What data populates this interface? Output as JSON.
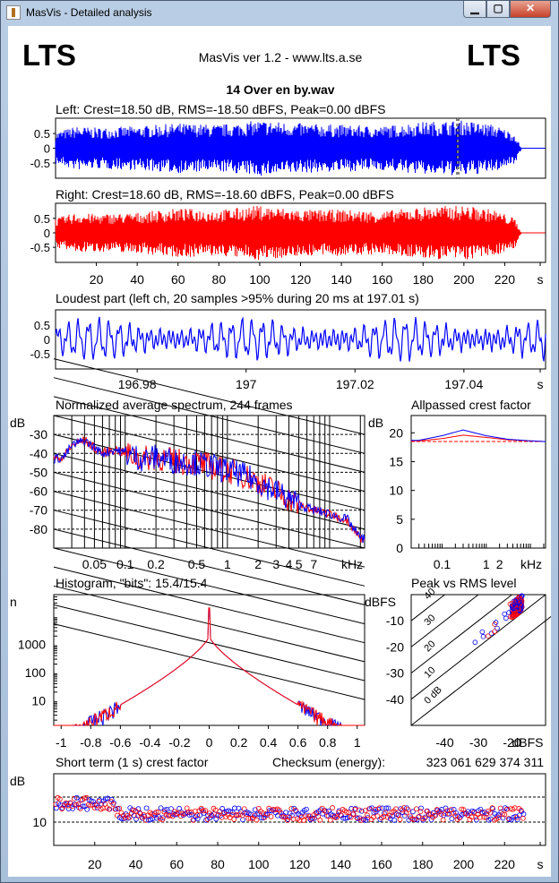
{
  "window": {
    "title": "MasVis - Detailed analysis",
    "min_label": "▁",
    "max_label": "▢",
    "close_label": "✕"
  },
  "header": {
    "logo_left": "LTS",
    "logo_right": "LTS",
    "app_version": "MasVis ver 1.2 - www.lts.a.se",
    "file_name": "14 Over en by.wav"
  },
  "colors": {
    "left": "#0000ff",
    "right": "#ff0000",
    "grid": "#000000"
  },
  "chart_data": [
    {
      "id": "left-waveform",
      "type": "line",
      "title": "Left: Crest=18.50 dB, RMS=-18.50 dBFS, Peak=0.00 dBFS",
      "yticks": [
        "0.5",
        "0",
        "-0.5"
      ],
      "ylim": [
        -1,
        1
      ],
      "x_range": [
        0,
        240
      ],
      "envelope_x": [
        0,
        10,
        20,
        40,
        60,
        80,
        100,
        120,
        140,
        160,
        180,
        200,
        215,
        225,
        228,
        240
      ],
      "envelope_amp": [
        0.55,
        0.75,
        0.7,
        0.75,
        0.85,
        0.8,
        0.95,
        0.85,
        0.8,
        0.75,
        0.9,
        0.95,
        0.8,
        0.5,
        0.0,
        0.0
      ],
      "marker_x": 197.01
    },
    {
      "id": "right-waveform",
      "type": "line",
      "title": "Right: Crest=18.60 dB, RMS=-18.60 dBFS, Peak=0.00 dBFS",
      "yticks": [
        "0.5",
        "0",
        "-0.5"
      ],
      "ylim": [
        -1,
        1
      ],
      "x_range": [
        0,
        240
      ],
      "envelope_x": [
        0,
        10,
        20,
        40,
        60,
        80,
        100,
        120,
        140,
        160,
        180,
        200,
        215,
        225,
        228,
        240
      ],
      "envelope_amp": [
        0.5,
        0.7,
        0.65,
        0.7,
        0.85,
        0.8,
        0.95,
        0.8,
        0.8,
        0.75,
        0.9,
        0.95,
        0.8,
        0.5,
        0.0,
        0.0
      ],
      "xticks": [
        "20",
        "40",
        "60",
        "80",
        "100",
        "120",
        "140",
        "160",
        "180",
        "200",
        "220",
        "s"
      ]
    },
    {
      "id": "loudest-part",
      "type": "line",
      "title": "Loudest part (left  ch, 20 samples >95% during 20 ms at 197.01 s)",
      "yticks": [
        "0.5",
        "0",
        "-0.5"
      ],
      "ylim": [
        -1,
        1
      ],
      "xlim": [
        196.965,
        197.055
      ],
      "xticks": [
        "196.98",
        "197",
        "197.02",
        "197.04",
        "s"
      ]
    },
    {
      "id": "spectrum",
      "type": "line",
      "title": "Normalized average spectrum, 244 frames",
      "ylabel": "dB",
      "yticks": [
        "-30",
        "-40",
        "-50",
        "-60",
        "-70",
        "-80"
      ],
      "ylim": [
        -90,
        -20
      ],
      "xlim_hz": [
        20,
        22000
      ],
      "xticks": [
        "0.05",
        "0.1",
        "0.2",
        "0.5",
        "1",
        "2",
        "3",
        "4",
        "5",
        "7",
        "kHz"
      ],
      "freq_khz": [
        0.02,
        0.025,
        0.03,
        0.04,
        0.05,
        0.06,
        0.08,
        0.1,
        0.15,
        0.2,
        0.3,
        0.5,
        0.7,
        1,
        1.5,
        2,
        3,
        4,
        5,
        7,
        10,
        15,
        20
      ],
      "level_db": [
        -43,
        -42,
        -36,
        -33,
        -37,
        -40,
        -38,
        -40,
        -43,
        -42,
        -44,
        -45,
        -47,
        -49,
        -52,
        -55,
        -60,
        -64,
        -67,
        -70,
        -72,
        -75,
        -85
      ]
    },
    {
      "id": "allpassed-crest",
      "type": "line",
      "title": "Allpassed crest factor",
      "ylabel": "dB",
      "yticks": [
        "20",
        "15",
        "10",
        "5",
        "0"
      ],
      "ylim": [
        0,
        23
      ],
      "xticks": [
        "0.1",
        "1",
        "2",
        "kHz"
      ],
      "freq_khz": [
        0.03,
        0.1,
        0.3,
        1,
        3,
        10,
        20
      ],
      "crest_left": [
        18.7,
        19.5,
        20.5,
        19.5,
        18.9,
        18.6,
        18.5
      ],
      "crest_right": [
        18.6,
        19.0,
        19.6,
        19.2,
        18.8,
        18.6,
        18.5
      ],
      "ref_crest": 18.5
    },
    {
      "id": "histogram",
      "type": "line",
      "title": "Histogram, \"bits\": 15.4/15.4",
      "ylabel": "n",
      "yticks": [
        "1000",
        "100",
        "10"
      ],
      "xticks": [
        "-1",
        "-0.8",
        "-0.6",
        "-0.4",
        "-0.2",
        "0",
        "0.2",
        "0.4",
        "0.6",
        "0.8",
        "1"
      ],
      "xlim": [
        -1.05,
        1.05
      ],
      "peak_count": 2000,
      "spike_count": 20000
    },
    {
      "id": "peak-vs-rms",
      "type": "scatter",
      "title": "Peak vs RMS level",
      "ylabel": "dBFS",
      "xlabel": "dBFS",
      "yticks": [
        "-10",
        "-20",
        "-30",
        "-40"
      ],
      "xticks": [
        "-40",
        "-30",
        "-20"
      ],
      "xlim": [
        -50,
        -10
      ],
      "ylim": [
        -50,
        0
      ],
      "diagonal_labels": [
        "40",
        "30",
        "20",
        "10",
        "0 dB"
      ],
      "cluster_rms": [
        -20,
        -17
      ],
      "cluster_peak": [
        -8,
        -2
      ]
    },
    {
      "id": "short-term-crest",
      "type": "scatter",
      "title": "Short term (1 s) crest factor",
      "checksum_label": "Checksum (energy):",
      "checksum_value": "323 061 629 374 311",
      "ylabel": "dB",
      "yticks": [
        "10"
      ],
      "xticks": [
        "20",
        "40",
        "60",
        "80",
        "100",
        "120",
        "140",
        "160",
        "180",
        "200",
        "220",
        "s"
      ],
      "x_range": [
        0,
        240
      ]
    }
  ]
}
